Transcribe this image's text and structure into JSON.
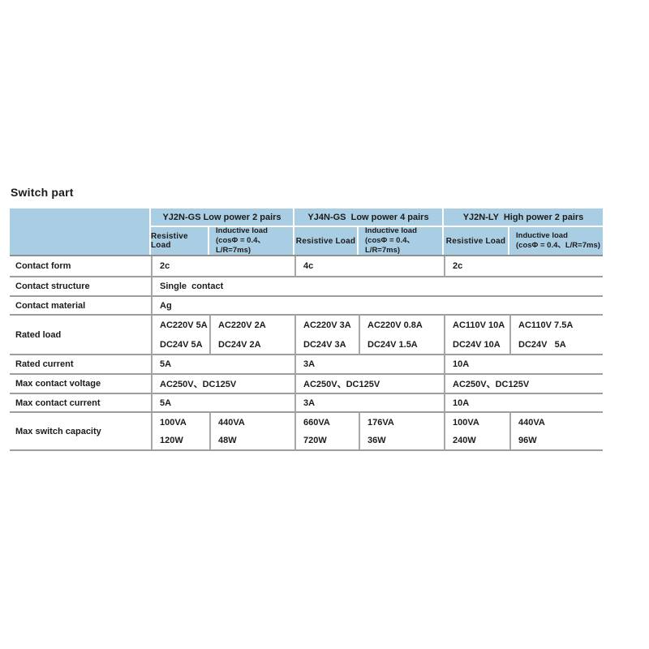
{
  "page": {
    "title": "Switch part"
  },
  "table": {
    "colors": {
      "header_bg": "#a9cde3",
      "grid_line": "#9e9e9e"
    },
    "header": {
      "groups": [
        {
          "model": "YJ2N-GS Low power 2 pairs"
        },
        {
          "model": "YJ4N-GS  Low power 4 pairs"
        },
        {
          "model": "YJ2N-LY  High power 2 pairs"
        }
      ],
      "resistive_label": "Resistive Load",
      "inductive_line1": "Inductive load",
      "inductive_line2": "(cosΦ = 0.4、L/R=7ms)"
    },
    "rows": {
      "contact_form": {
        "label": "Contact form",
        "values": [
          "2c",
          "4c",
          "2c"
        ]
      },
      "contact_structure": {
        "label": "Contact structure",
        "value": "Single  contact"
      },
      "contact_material": {
        "label": "Contact material",
        "value": "Ag"
      },
      "rated_load": {
        "label": "Rated load",
        "cells": [
          {
            "line1": "AC220V 5A",
            "line2": "DC24V 5A"
          },
          {
            "line1": "AC220V 2A",
            "line2": "DC24V 2A"
          },
          {
            "line1": "AC220V 3A",
            "line2": "DC24V 3A"
          },
          {
            "line1": "AC220V 0.8A",
            "line2": "DC24V 1.5A"
          },
          {
            "line1": "AC110V 10A",
            "line2": "DC24V 10A"
          },
          {
            "line1": "AC110V 7.5A",
            "line2": "DC24V   5A"
          }
        ]
      },
      "rated_current": {
        "label": "Rated current",
        "values": [
          "5A",
          "3A",
          "10A"
        ]
      },
      "max_contact_voltage": {
        "label": "Max contact voltage",
        "values": [
          "AC250V、DC125V",
          "AC250V、DC125V",
          "AC250V、DC125V"
        ]
      },
      "max_contact_current": {
        "label": "Max contact current",
        "values": [
          "5A",
          "3A",
          "10A"
        ]
      },
      "max_switch_capacity": {
        "label": "Max switch capacity",
        "cells": [
          {
            "line1": "100VA",
            "line2": "120W"
          },
          {
            "line1": "440VA",
            "line2": "48W"
          },
          {
            "line1": "660VA",
            "line2": "720W"
          },
          {
            "line1": "176VA",
            "line2": "36W"
          },
          {
            "line1": "100VA",
            "line2": "240W"
          },
          {
            "line1": "440VA",
            "line2": "96W"
          }
        ]
      }
    }
  }
}
